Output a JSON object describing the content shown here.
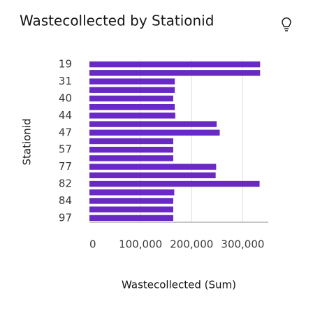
{
  "chart_data": {
    "type": "hbar",
    "title": "Wastecollected by Stationid",
    "x_label": "Wastecollected (Sum)",
    "y_label": "Stationid",
    "categories": [
      "19",
      null,
      "31",
      null,
      "40",
      null,
      "44",
      null,
      "47",
      null,
      "57",
      null,
      "77",
      null,
      "82",
      null,
      "84",
      null,
      "97"
    ],
    "values": [
      334000,
      334000,
      167000,
      167000,
      164000,
      167000,
      168000,
      249000,
      255000,
      164000,
      164000,
      164000,
      248000,
      247000,
      333000,
      166000,
      164000,
      164000,
      164000
    ],
    "color": "#6929c4",
    "xlim": [
      0,
      350000
    ],
    "xticks": [
      0,
      {
        "value": 100000,
        "label": "100,000"
      },
      {
        "value": 200000,
        "label": "200,000"
      },
      {
        "value": 300000,
        "label": "300,000"
      }
    ],
    "grid": true
  }
}
